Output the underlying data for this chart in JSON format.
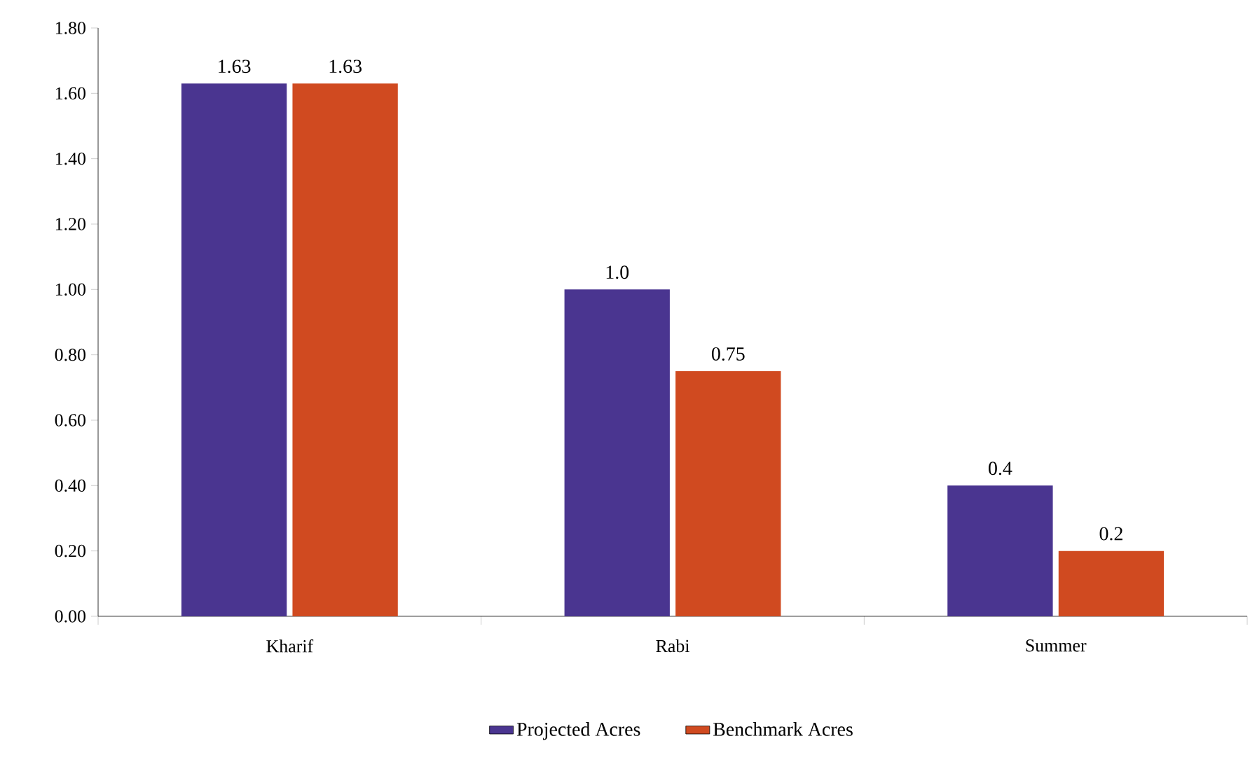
{
  "chart_data": {
    "type": "bar",
    "categories": [
      "Kharif",
      "Rabi",
      "Summer"
    ],
    "series": [
      {
        "name": "Projected Acres",
        "color": "#4a3590",
        "values": [
          1.63,
          1.0,
          0.4
        ],
        "value_labels": [
          "1.63",
          "1.0",
          "0.4"
        ]
      },
      {
        "name": "Benchmark Acres",
        "color": "#d04a20",
        "values": [
          1.63,
          0.75,
          0.2
        ],
        "value_labels": [
          "1.63",
          "0.75",
          "0.2"
        ]
      }
    ],
    "ylim": [
      0,
      1.8
    ],
    "yticks": [
      {
        "value": 0,
        "label": "0.00"
      },
      {
        "value": 0.2,
        "label": "0.20"
      },
      {
        "value": 0.4,
        "label": "0.40"
      },
      {
        "value": 0.6,
        "label": "0.60"
      },
      {
        "value": 0.8,
        "label": "0.80"
      },
      {
        "value": 1.0,
        "label": "1.00"
      },
      {
        "value": 1.2,
        "label": "1.20"
      },
      {
        "value": 1.4,
        "label": "1.40"
      },
      {
        "value": 1.6,
        "label": "1.60"
      },
      {
        "value": 1.8,
        "label": "1.80"
      }
    ],
    "grid": false,
    "legend": "bottom"
  }
}
